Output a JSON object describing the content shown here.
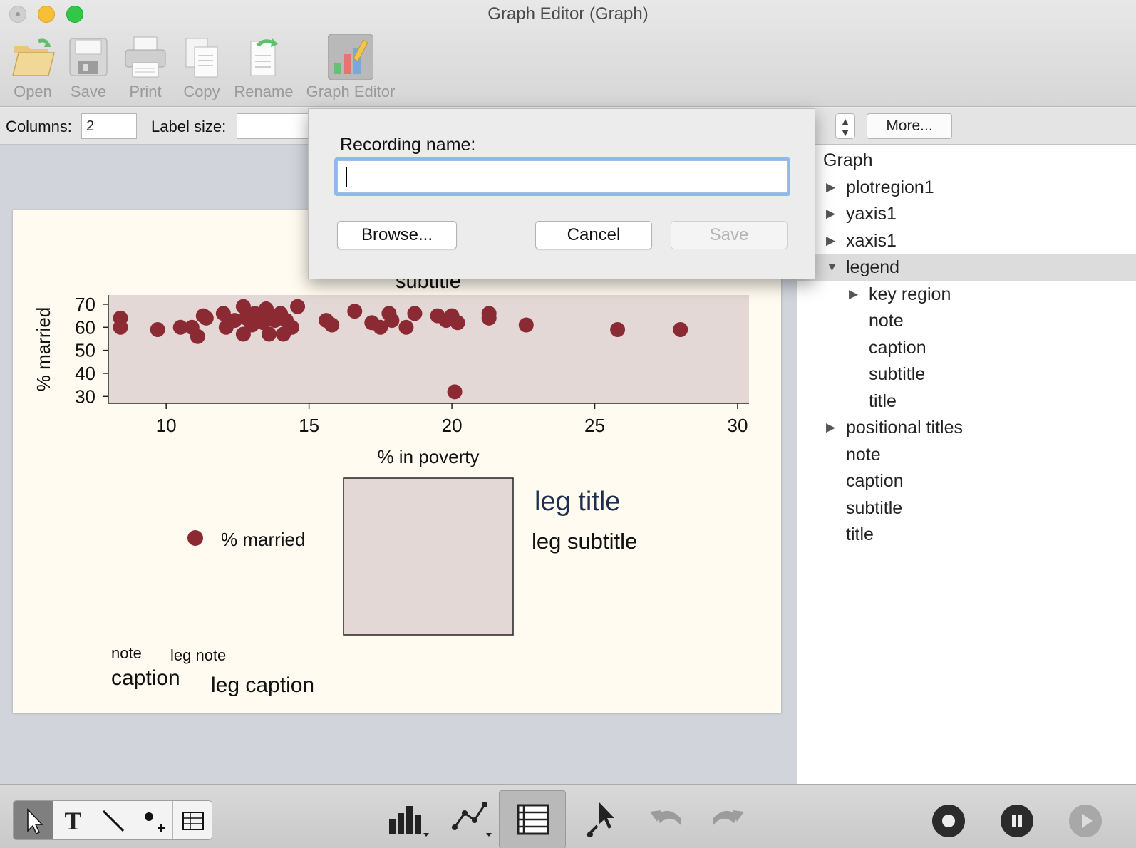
{
  "window": {
    "title": "Graph Editor (Graph)"
  },
  "toolbar": {
    "items": [
      {
        "label": "Open",
        "icon": "folder-open-icon"
      },
      {
        "label": "Save",
        "icon": "floppy-disk-icon"
      },
      {
        "label": "Print",
        "icon": "printer-icon"
      },
      {
        "label": "Copy",
        "icon": "copy-document-icon"
      },
      {
        "label": "Rename",
        "icon": "rename-document-icon"
      },
      {
        "label": "Graph Editor",
        "icon": "graph-editor-icon"
      }
    ]
  },
  "properties": {
    "columns_label": "Columns:",
    "columns_value": "2",
    "label_size_label": "Label size:",
    "label_size_value": "",
    "more_button": "More..."
  },
  "dialog": {
    "label": "Recording name:",
    "input_value": "",
    "browse_button": "Browse...",
    "cancel_button": "Cancel",
    "save_button": "Save"
  },
  "graph": {
    "subtitle": "subtitle",
    "legend_key_label": "% married",
    "legend_title": "leg title",
    "legend_subtitle": "leg subtitle",
    "note": "note",
    "caption": "caption",
    "legend_note": "leg note",
    "legend_caption": "leg caption",
    "colors": {
      "marker": "#8b2a33",
      "plot_bg": "#e3d8d6",
      "graph_bg": "#fffbf0",
      "legend_title": "#1f2d4e"
    }
  },
  "chart_data": {
    "type": "scatter",
    "xlabel": "% in poverty",
    "ylabel": "% married",
    "xlim": [
      8,
      30.4
    ],
    "ylim": [
      27,
      74
    ],
    "xticks": [
      10,
      15,
      20,
      25,
      30
    ],
    "yticks": [
      30,
      40,
      50,
      60,
      70
    ],
    "series": [
      {
        "name": "% married",
        "points": [
          [
            8.4,
            64
          ],
          [
            8.4,
            60
          ],
          [
            9.7,
            59
          ],
          [
            10.5,
            60
          ],
          [
            10.9,
            60
          ],
          [
            11.1,
            56
          ],
          [
            11.3,
            65
          ],
          [
            11.4,
            64
          ],
          [
            12.0,
            66
          ],
          [
            12.1,
            60
          ],
          [
            12.4,
            63
          ],
          [
            12.7,
            69
          ],
          [
            12.7,
            57
          ],
          [
            12.8,
            64
          ],
          [
            13.0,
            61
          ],
          [
            13.1,
            66
          ],
          [
            13.2,
            65
          ],
          [
            13.4,
            62
          ],
          [
            13.5,
            68
          ],
          [
            13.6,
            57
          ],
          [
            13.7,
            65
          ],
          [
            13.8,
            63
          ],
          [
            14.0,
            66
          ],
          [
            14.1,
            57
          ],
          [
            14.2,
            63
          ],
          [
            14.4,
            60
          ],
          [
            14.6,
            69
          ],
          [
            15.6,
            63
          ],
          [
            15.8,
            61
          ],
          [
            16.6,
            67
          ],
          [
            17.2,
            62
          ],
          [
            17.5,
            60
          ],
          [
            17.8,
            66
          ],
          [
            17.9,
            63
          ],
          [
            18.4,
            60
          ],
          [
            18.7,
            66
          ],
          [
            19.5,
            65
          ],
          [
            19.8,
            63
          ],
          [
            20.0,
            65
          ],
          [
            20.1,
            32
          ],
          [
            20.2,
            62
          ],
          [
            21.3,
            66
          ],
          [
            21.3,
            64
          ],
          [
            22.6,
            61
          ],
          [
            25.8,
            59
          ],
          [
            28.0,
            59
          ]
        ]
      }
    ]
  },
  "tree": {
    "items": [
      {
        "label": "Graph",
        "level": 0,
        "toggle": "expanded",
        "selected": false
      },
      {
        "label": "plotregion1",
        "level": 1,
        "toggle": "collapsed",
        "selected": false
      },
      {
        "label": "yaxis1",
        "level": 1,
        "toggle": "collapsed",
        "selected": false
      },
      {
        "label": "xaxis1",
        "level": 1,
        "toggle": "collapsed",
        "selected": false
      },
      {
        "label": "legend",
        "level": 1,
        "toggle": "expanded",
        "selected": true
      },
      {
        "label": "key region",
        "level": 2,
        "toggle": "collapsed",
        "selected": false
      },
      {
        "label": "note",
        "level": 2,
        "toggle": "none",
        "selected": false
      },
      {
        "label": "caption",
        "level": 2,
        "toggle": "none",
        "selected": false
      },
      {
        "label": "subtitle",
        "level": 2,
        "toggle": "none",
        "selected": false
      },
      {
        "label": "title",
        "level": 2,
        "toggle": "none",
        "selected": false
      },
      {
        "label": "positional titles",
        "level": 1,
        "toggle": "collapsed",
        "selected": false
      },
      {
        "label": "note",
        "level": 1,
        "toggle": "none",
        "selected": false
      },
      {
        "label": "caption",
        "level": 1,
        "toggle": "none",
        "selected": false
      },
      {
        "label": "subtitle",
        "level": 1,
        "toggle": "none",
        "selected": false
      },
      {
        "label": "title",
        "level": 1,
        "toggle": "none",
        "selected": false
      }
    ]
  },
  "bottom_tools": {
    "left_group": [
      "pointer-tool-icon",
      "text-tool-icon",
      "line-tool-icon",
      "add-marker-tool-icon",
      "grid-tool-icon"
    ],
    "center": [
      "bar-chart-icon",
      "line-chart-icon",
      "object-browser-icon",
      "select-object-icon",
      "undo-icon",
      "redo-icon"
    ],
    "recording": [
      "record-icon",
      "pause-icon",
      "play-icon"
    ]
  }
}
